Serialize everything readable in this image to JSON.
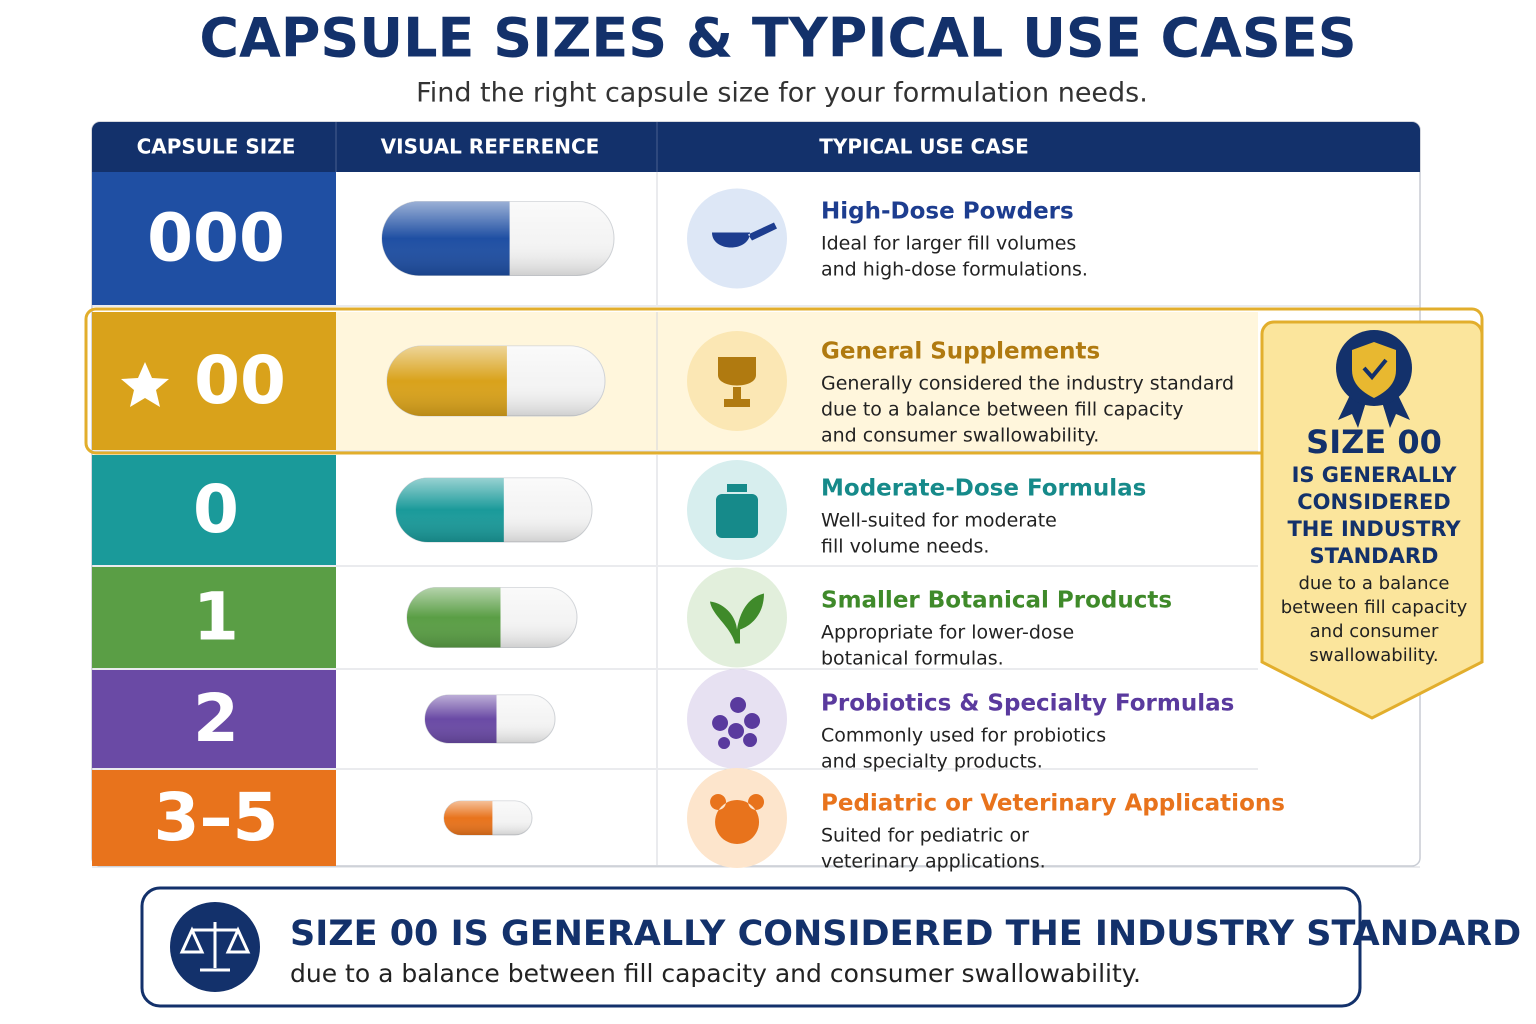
{
  "header": {
    "title": "CAPSULE SIZES & TYPICAL USE CASES",
    "subtitle": "Find the right capsule size for your formulation needs."
  },
  "table": {
    "columns": [
      "CAPSULE SIZE",
      "VISUAL REFERENCE",
      "TYPICAL USE CASE"
    ],
    "rows": [
      {
        "size": "000",
        "title": "High-Dose Powders",
        "lines": [
          "Ideal for larger fill volumes",
          "and high-dose formulations."
        ]
      },
      {
        "size": "00",
        "title": "General Supplements",
        "lines": [
          "Generally considered the industry standard",
          "due to a balance between fill capacity",
          "and consumer swallowability."
        ]
      },
      {
        "size": "0",
        "title": "Moderate-Dose Formulas",
        "lines": [
          "Well-suited for moderate",
          "fill volume needs."
        ]
      },
      {
        "size": "1",
        "title": "Smaller Botanical Products",
        "lines": [
          "Appropriate for lower-dose",
          "botanical formulas."
        ]
      },
      {
        "size": "2",
        "title": "Probiotics & Specialty Formulas",
        "lines": [
          "Commonly used for probiotics",
          "and specialty products."
        ]
      },
      {
        "size": "3–5",
        "title": "Pediatric or Veterinary Applications",
        "lines": [
          "Suited for pediatric or",
          "veterinary applications."
        ]
      }
    ]
  },
  "badge": {
    "heading": "SIZE 00",
    "bold_lines": [
      "IS GENERALLY",
      "CONSIDERED",
      "THE INDUSTRY",
      "STANDARD"
    ],
    "lines": [
      "due to a balance",
      "between fill capacity",
      "and consumer",
      "swallowability."
    ]
  },
  "footer": {
    "title": "SIZE 00 IS GENERALLY CONSIDERED THE INDUSTRY STANDARD",
    "text": "due to a balance between fill capacity and consumer swallowability."
  }
}
